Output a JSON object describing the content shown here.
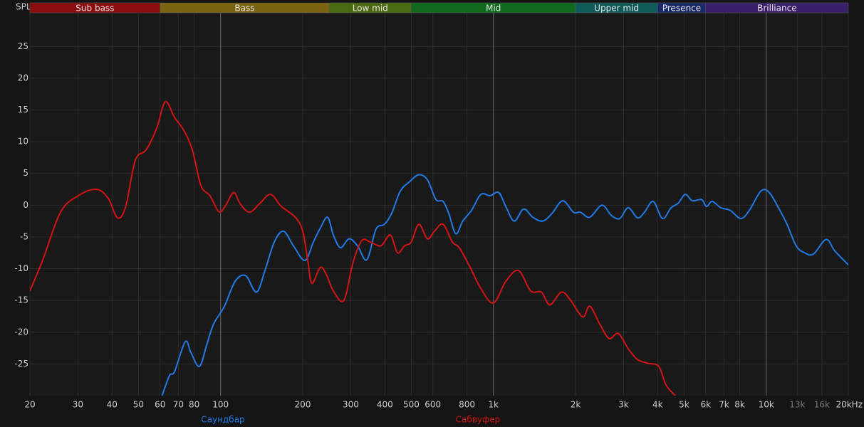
{
  "chart_data": {
    "type": "line",
    "y_label": "SPL",
    "x_scale": "log",
    "grid": true,
    "xlim": [
      20,
      20000
    ],
    "ylim": [
      -30,
      30.3
    ],
    "yticks": [
      -25,
      -20,
      -15,
      -10,
      -5,
      0,
      5,
      10,
      15,
      20,
      25
    ],
    "xticks": [
      20,
      30,
      40,
      50,
      60,
      70,
      80,
      100,
      200,
      300,
      400,
      500,
      600,
      800,
      {
        "value": 1000,
        "label": "1k"
      },
      {
        "value": 2000,
        "label": "2k"
      },
      {
        "value": 3000,
        "label": "3k"
      },
      {
        "value": 4000,
        "label": "4k"
      },
      {
        "value": 5000,
        "label": "5k"
      },
      {
        "value": 6000,
        "label": "6k"
      },
      {
        "value": 7000,
        "label": "7k"
      },
      {
        "value": 8000,
        "label": "8k"
      },
      {
        "value": 10000,
        "label": "10k"
      },
      {
        "value": 13000,
        "label": "13k",
        "color": "#7a7a7a"
      },
      {
        "value": 16000,
        "label": "16k",
        "color": "#7a7a7a"
      },
      {
        "value": 20000,
        "label": "20kHz"
      }
    ],
    "bands": [
      {
        "label": "Sub bass",
        "from": 20,
        "to": 60,
        "color": "#8a0c0c"
      },
      {
        "label": "Bass",
        "from": 60,
        "to": 250,
        "color": "#7a6410"
      },
      {
        "label": "Low mid",
        "from": 250,
        "to": 500,
        "color": "#4c6a12"
      },
      {
        "label": "Mid",
        "from": 500,
        "to": 2000,
        "color": "#0f6a1e"
      },
      {
        "label": "Upper mid",
        "from": 2000,
        "to": 4000,
        "color": "#0f5b5b"
      },
      {
        "label": "Presence",
        "from": 4000,
        "to": 6000,
        "color": "#182a6a"
      },
      {
        "label": "Brilliance",
        "from": 6000,
        "to": 20000,
        "color": "#3a1f6a"
      }
    ],
    "series": [
      {
        "name": "Саундбар",
        "color": "#1f7ae6",
        "x": [
          61,
          65,
          67.8,
          74.2,
          77.8,
          83.6,
          88.8,
          94.3,
          103.3,
          113,
          123.6,
          135.3,
          145.4,
          157.3,
          170,
          185,
          203.7,
          218.8,
          232,
          246.8,
          259,
          275,
          295.6,
          317.8,
          343.6,
          371,
          399,
          423.6,
          455.6,
          492.8,
          533,
          573,
          615.6,
          654,
          686,
          728,
          772,
          832,
          899,
          972,
          1046,
          1110,
          1192,
          1290,
          1394,
          1517,
          1640,
          1795,
          1964,
          2085,
          2254,
          2500,
          2704,
          2906,
          3120,
          3374,
          3580,
          3852,
          4168,
          4480,
          4756,
          5050,
          5360,
          5794,
          6040,
          6340,
          6820,
          7374,
          8072,
          8678,
          9552,
          10260,
          11220,
          11920,
          12880,
          13840,
          14900,
          16580,
          17840,
          20000
        ],
        "values": [
          -30,
          -26.8,
          -26.2,
          -21.5,
          -23.2,
          -25.4,
          -22.1,
          -18.7,
          -15.9,
          -12,
          -11.1,
          -13.7,
          -10.3,
          -5.8,
          -4.1,
          -6.4,
          -8.7,
          -5.8,
          -3.6,
          -1.9,
          -4.7,
          -6.7,
          -5.3,
          -6.4,
          -8.6,
          -3.8,
          -3,
          -1.3,
          2.2,
          3.7,
          4.8,
          4,
          0.9,
          0.6,
          -1.3,
          -4.5,
          -2.5,
          -0.8,
          1.7,
          1.5,
          2,
          -0.2,
          -2.5,
          -0.6,
          -1.9,
          -2.5,
          -1.3,
          0.7,
          -1.1,
          -1.1,
          -1.9,
          0,
          -1.6,
          -2.1,
          -0.4,
          -2,
          -1.1,
          0.6,
          -2.1,
          -0.4,
          0.3,
          1.7,
          0.7,
          0.9,
          -0.2,
          0.6,
          -0.4,
          -0.8,
          -2.1,
          -0.8,
          2.2,
          2,
          -0.8,
          -3,
          -6.4,
          -7.5,
          -7.7,
          -5.4,
          -7.2,
          -9.4
        ]
      },
      {
        "name": "Сабвуфер",
        "color": "#d41414",
        "x": [
          20,
          22.3,
          25.9,
          30.1,
          35,
          38.7,
          41.9,
          44.9,
          48.7,
          53.3,
          58.3,
          62.7,
          67.8,
          73.3,
          78.8,
          84.7,
          91.4,
          98.4,
          103.8,
          111.6,
          117.7,
          127.4,
          139.4,
          152.6,
          167,
          188,
          200,
          208.6,
          216,
          232,
          244,
          259,
          283,
          305,
          329,
          354,
          387,
          419,
          445,
          472,
          500,
          533,
          573,
          608,
          654,
          707,
          750,
          822,
          899,
          1000,
          1110,
          1236,
          1370,
          1500,
          1610,
          1774,
          1906,
          2124,
          2254,
          2454,
          2654,
          2870,
          3120,
          3374,
          3692,
          4040,
          4292,
          4646
        ],
        "values": [
          -13.5,
          -8.6,
          -1.1,
          1.5,
          2.5,
          1.1,
          -2,
          -0.2,
          7.1,
          8.7,
          12.1,
          16.3,
          13.8,
          11.8,
          8.7,
          3.1,
          1.5,
          -1,
          -0.2,
          2,
          0.3,
          -1.1,
          0.3,
          1.7,
          -0.2,
          -1.9,
          -4.1,
          -8.6,
          -12.3,
          -9.8,
          -10.9,
          -13.5,
          -15,
          -9.2,
          -5.6,
          -5.8,
          -6.4,
          -4.7,
          -7.5,
          -6.4,
          -5.8,
          -3,
          -5.3,
          -4.1,
          -3,
          -5.8,
          -6.7,
          -9.8,
          -13.1,
          -15.4,
          -12,
          -10.3,
          -13.5,
          -13.7,
          -15.7,
          -13.7,
          -14.8,
          -17.6,
          -15.9,
          -18.7,
          -21,
          -20.2,
          -22.6,
          -24.3,
          -24.9,
          -25.4,
          -28.3,
          -30
        ]
      }
    ]
  }
}
